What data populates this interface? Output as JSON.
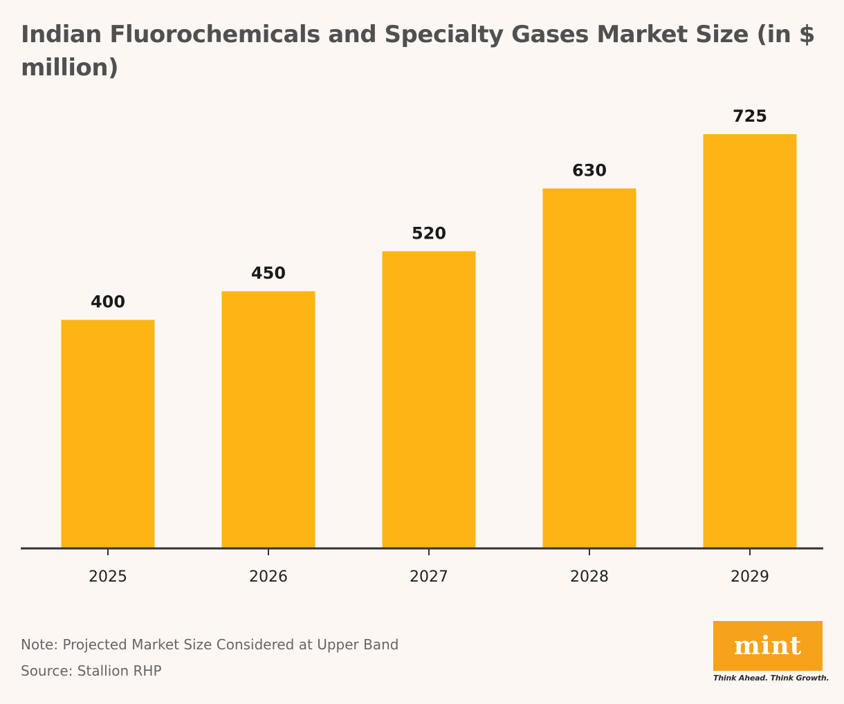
{
  "title": "Indian Fluorochemicals and Specialty Gases Market Size (in $ million)",
  "note": "Note: Projected Market Size Considered at Upper Band",
  "source": "Source: Stallion RHP",
  "logo": {
    "text": "mint",
    "tagline": "Think Ahead. Think Growth."
  },
  "colors": {
    "bar": "#fdb515",
    "axis": "#333333",
    "background": "#fdf7f4",
    "logo": "#f7a21b"
  },
  "chart_data": {
    "type": "bar",
    "categories": [
      "2025",
      "2026",
      "2027",
      "2028",
      "2029"
    ],
    "values": [
      400,
      450,
      520,
      630,
      725
    ],
    "data_labels": [
      "400",
      "450",
      "520",
      "630",
      "725"
    ],
    "title": "Indian Fluorochemicals and Specialty Gases Market Size (in $ million)",
    "xlabel": "",
    "ylabel": "",
    "ylim": [
      0,
      725
    ],
    "grid": false,
    "legend": "none"
  }
}
